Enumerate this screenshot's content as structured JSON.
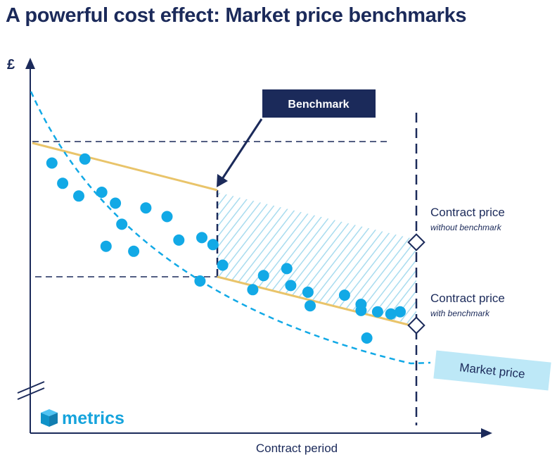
{
  "title": "A powerful cost effect: Market price benchmarks",
  "y_axis_symbol": "£",
  "x_axis_label": "Contract period",
  "benchmark_label": "Benchmark",
  "contract_price_without": {
    "title": "Contract price",
    "sub": "without benchmark"
  },
  "contract_price_with": {
    "title": "Contract price",
    "sub": "with benchmark"
  },
  "market_price_label": "Market price",
  "logo_text": "metrics",
  "colors": {
    "navy": "#1b2a5a",
    "cyan": "#12a9e6",
    "gold": "#e9c46a",
    "hatch": "#a9dcef",
    "market_box": "#bde8f7"
  },
  "market_points_pct": [
    [
      2.9,
      81.4
    ],
    [
      12.1,
      83.0
    ],
    [
      5.9,
      73.2
    ],
    [
      10.4,
      68.1
    ],
    [
      16.8,
      69.6
    ],
    [
      20.6,
      65.2
    ],
    [
      29.1,
      63.3
    ],
    [
      22.4,
      56.7
    ],
    [
      35.0,
      59.8
    ],
    [
      44.7,
      51.3
    ],
    [
      18.0,
      47.8
    ],
    [
      25.7,
      45.8
    ],
    [
      38.3,
      50.3
    ],
    [
      47.8,
      48.5
    ],
    [
      50.5,
      40.2
    ],
    [
      44.2,
      33.8
    ],
    [
      61.9,
      36.0
    ],
    [
      58.9,
      30.3
    ],
    [
      68.4,
      38.8
    ],
    [
      69.5,
      32.0
    ],
    [
      74.3,
      29.3
    ],
    [
      74.9,
      23.8
    ],
    [
      84.5,
      28.1
    ],
    [
      89.1,
      21.9
    ],
    [
      89.1,
      24.4
    ],
    [
      93.7,
      21.4
    ],
    [
      90.7,
      10.8
    ],
    [
      97.4,
      20.5
    ],
    [
      100.0,
      21.4
    ]
  ]
}
